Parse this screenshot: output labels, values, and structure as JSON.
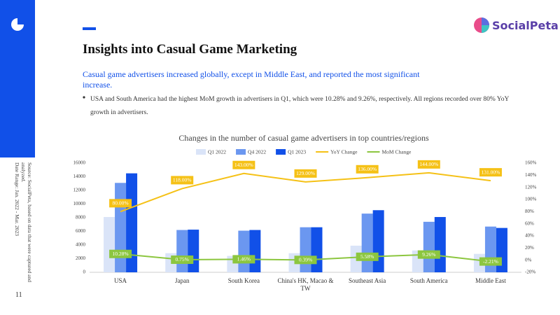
{
  "header": {
    "logo_text": "SocialPeta",
    "title": "Insights into Casual Game Marketing",
    "subtitle": "Casual game advertisers increased globally, except in Middle East, and reported the most significant increase.",
    "bullet": "USA and South America had the highest MoM growth in advertisers in Q1, which were 10.28% and 9.26%, respectively. All regions recorded over 80% YoY growth in advertisers."
  },
  "footer": {
    "source": "Source: SocialPeta, based on data that were captured and analyzed.",
    "date_range": "Date Range: Jan. 2022 - Mar. 2023",
    "page": "11"
  },
  "chart_data": {
    "type": "bar",
    "title": "Changes in the number of casual game advertisers in top countries/regions",
    "categories": [
      "USA",
      "Japan",
      "South Korea",
      "China's HK, Macao & TW",
      "Southeast Asia",
      "South America",
      "Middle East"
    ],
    "series": [
      {
        "name": "Q1 2022",
        "type": "bar",
        "color": "#dae4f8",
        "values": [
          8100,
          2800,
          2400,
          2800,
          3900,
          3200,
          2700
        ]
      },
      {
        "name": "Q4 2022",
        "type": "bar",
        "color": "#6b97f0",
        "values": [
          13100,
          6200,
          6100,
          6600,
          8600,
          7400,
          6700
        ]
      },
      {
        "name": "Q1 2023",
        "type": "bar",
        "color": "#1150e8",
        "values": [
          14500,
          6250,
          6200,
          6600,
          9100,
          8100,
          6500
        ]
      },
      {
        "name": "YoY Change",
        "type": "line",
        "axis": "y2",
        "color": "#f5c116",
        "values": [
          80,
          118,
          143,
          129,
          136,
          144,
          131
        ],
        "value_labels": [
          "80.00%",
          "118.00%",
          "143.00%",
          "129.00%",
          "136.00%",
          "144.00%",
          "131.00%"
        ]
      },
      {
        "name": "MoM Change",
        "type": "line",
        "axis": "y2",
        "color": "#8cc63f",
        "values": [
          10.28,
          0.75,
          1.46,
          0.39,
          5.58,
          9.26,
          -2.21
        ],
        "value_labels": [
          "10.28%",
          "0.75%",
          "1.46%",
          "0.39%",
          "5.58%",
          "9.26%",
          "-2.21%"
        ]
      }
    ],
    "ylim": [
      0,
      16000
    ],
    "yticks": [
      0,
      2000,
      4000,
      6000,
      8000,
      10000,
      12000,
      14000,
      16000
    ],
    "y2lim": [
      -20,
      160
    ],
    "y2ticks": [
      {
        "value": -20,
        "label": "-20%"
      },
      {
        "value": 0,
        "label": "0%"
      },
      {
        "value": 20,
        "label": "20%"
      },
      {
        "value": 40,
        "label": "40%"
      },
      {
        "value": 60,
        "label": "60%"
      },
      {
        "value": 80,
        "label": "80%"
      },
      {
        "value": 100,
        "label": "100%"
      },
      {
        "value": 120,
        "label": "120%"
      },
      {
        "value": 140,
        "label": "140%"
      },
      {
        "value": 160,
        "label": "160%"
      }
    ],
    "grid": false,
    "legend": "top"
  }
}
